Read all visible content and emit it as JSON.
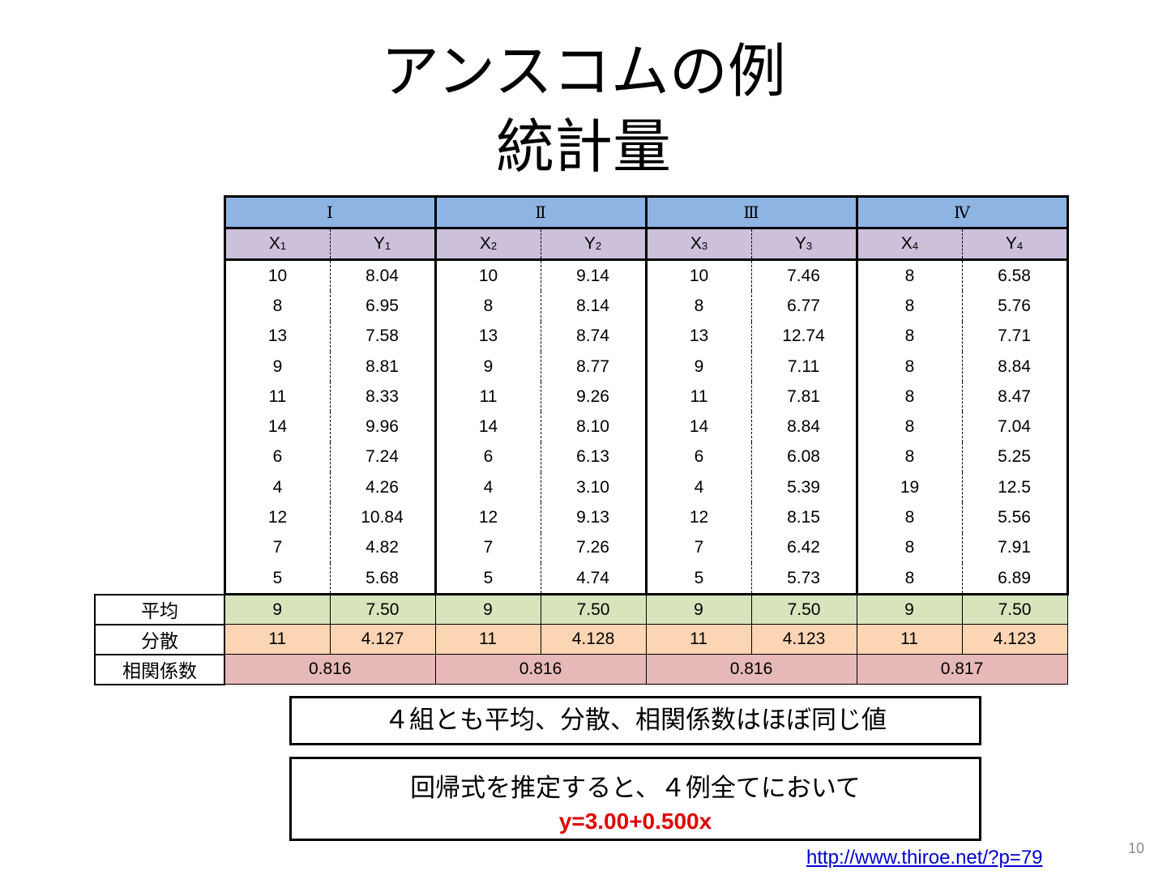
{
  "slide": {
    "title_line1": "アンスコムの例",
    "title_line2": "統計量",
    "page_number": "10",
    "link_text": "http://www.thiroe.net/?p=79"
  },
  "table": {
    "groups": [
      "Ⅰ",
      "Ⅱ",
      "Ⅲ",
      "Ⅳ"
    ],
    "subheaders": [
      {
        "base": "X",
        "sub": "1"
      },
      {
        "base": "Y",
        "sub": "1"
      },
      {
        "base": "X",
        "sub": "2"
      },
      {
        "base": "Y",
        "sub": "2"
      },
      {
        "base": "X",
        "sub": "3"
      },
      {
        "base": "Y",
        "sub": "3"
      },
      {
        "base": "X",
        "sub": "4"
      },
      {
        "base": "Y",
        "sub": "4"
      }
    ],
    "rows": [
      [
        "10",
        "8.04",
        "10",
        "9.14",
        "10",
        "7.46",
        "8",
        "6.58"
      ],
      [
        "8",
        "6.95",
        "8",
        "8.14",
        "8",
        "6.77",
        "8",
        "5.76"
      ],
      [
        "13",
        "7.58",
        "13",
        "8.74",
        "13",
        "12.74",
        "8",
        "7.71"
      ],
      [
        "9",
        "8.81",
        "9",
        "8.77",
        "9",
        "7.11",
        "8",
        "8.84"
      ],
      [
        "11",
        "8.33",
        "11",
        "9.26",
        "11",
        "7.81",
        "8",
        "8.47"
      ],
      [
        "14",
        "9.96",
        "14",
        "8.10",
        "14",
        "8.84",
        "8",
        "7.04"
      ],
      [
        "6",
        "7.24",
        "6",
        "6.13",
        "6",
        "6.08",
        "8",
        "5.25"
      ],
      [
        "4",
        "4.26",
        "4",
        "3.10",
        "4",
        "5.39",
        "19",
        "12.5"
      ],
      [
        "12",
        "10.84",
        "12",
        "9.13",
        "12",
        "8.15",
        "8",
        "5.56"
      ],
      [
        "7",
        "4.82",
        "7",
        "7.26",
        "7",
        "6.42",
        "8",
        "7.91"
      ],
      [
        "5",
        "5.68",
        "5",
        "4.74",
        "5",
        "5.73",
        "8",
        "6.89"
      ]
    ],
    "mean": {
      "label": "平均",
      "values": [
        "9",
        "7.50",
        "9",
        "7.50",
        "9",
        "7.50",
        "9",
        "7.50"
      ]
    },
    "variance": {
      "label": "分散",
      "values": [
        "11",
        "4.127",
        "11",
        "4.128",
        "11",
        "4.123",
        "11",
        "4.123"
      ]
    },
    "correlation": {
      "label": "相関係数",
      "values": [
        "0.816",
        "0.816",
        "0.816",
        "0.817"
      ]
    }
  },
  "notes": {
    "note1": "４組とも平均、分散、相関係数はほぼ同じ値",
    "note2_line1": "回帰式を推定すると、４例全てにおいて",
    "note2_line2": "y=3.00+0.500x"
  },
  "colors": {
    "group_header": "#8db4e2",
    "sub_header": "#ccc0da",
    "mean_row": "#d8e4bc",
    "variance_row": "#fcd5b4",
    "correlation_row": "#e6b8b7",
    "formula": "#e00000",
    "link": "#0000cc"
  }
}
